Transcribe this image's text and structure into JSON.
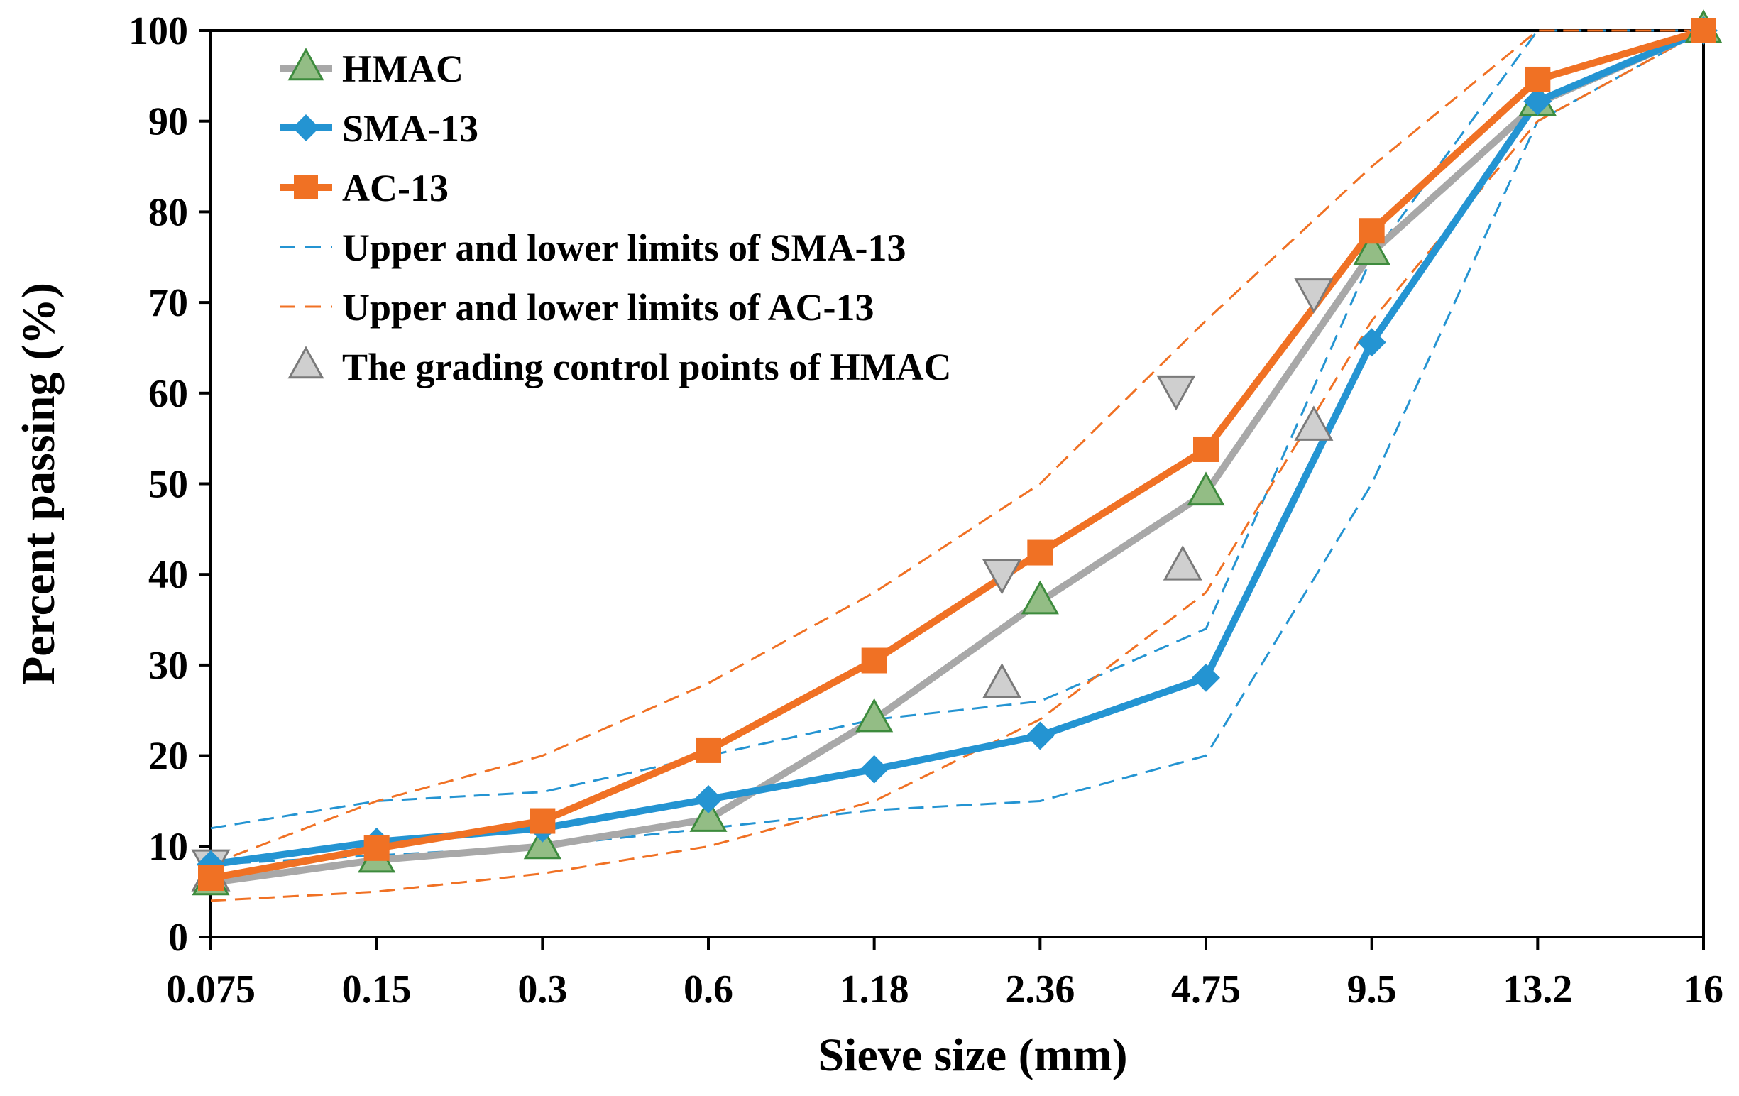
{
  "chart_data": {
    "type": "line",
    "title": "",
    "xlabel": "Sieve size (mm)",
    "ylabel": "Percent passing (%)",
    "categories": [
      "0.075",
      "0.15",
      "0.3",
      "0.6",
      "1.18",
      "2.36",
      "4.75",
      "9.5",
      "13.2",
      "16"
    ],
    "ylim": [
      0,
      100
    ],
    "yticks": [
      0,
      10,
      20,
      30,
      40,
      50,
      60,
      70,
      80,
      90,
      100
    ],
    "grid": false,
    "legend_position": "top-left",
    "series": [
      {
        "name": "HMAC",
        "style": "gray-line-green-triangle",
        "values": [
          6,
          8.5,
          10,
          13,
          24,
          37,
          49,
          75.5,
          92,
          100
        ]
      },
      {
        "name": "SMA-13",
        "style": "blue-line-diamond",
        "values": [
          8,
          10.5,
          12,
          15.2,
          18.5,
          22.2,
          28.6,
          65.6,
          92.2,
          100
        ]
      },
      {
        "name": "AC-13",
        "style": "orange-line-square",
        "values": [
          6.5,
          9.8,
          12.8,
          20.6,
          30.5,
          42.4,
          53.8,
          77.9,
          94.6,
          100
        ]
      }
    ],
    "limits": [
      {
        "name": "Upper and lower limits of SMA-13",
        "color": "#2494d2",
        "upper": [
          12,
          15,
          16,
          20,
          24,
          26,
          34,
          75,
          100,
          100
        ],
        "lower": [
          8,
          9,
          10,
          12,
          14,
          15,
          20,
          50,
          90,
          100
        ]
      },
      {
        "name": "Upper and lower limits of AC-13",
        "color": "#f07124",
        "upper": [
          8,
          15,
          20,
          28,
          38,
          50,
          68,
          85,
          100,
          100
        ],
        "lower": [
          4,
          5,
          7,
          10,
          15,
          24,
          38,
          68,
          90,
          100
        ]
      }
    ],
    "control_points": {
      "name": "The grading control points of HMAC",
      "lower": [
        {
          "x": 0.0,
          "y": 6.5
        },
        {
          "x": 4.77,
          "y": 27.8
        },
        {
          "x": 5.86,
          "y": 40.8
        },
        {
          "x": 6.65,
          "y": 56.2
        }
      ],
      "upper": [
        {
          "x": 0.0,
          "y": 8.2
        },
        {
          "x": 4.77,
          "y": 40.2
        },
        {
          "x": 5.82,
          "y": 60.5
        },
        {
          "x": 6.65,
          "y": 71.2
        }
      ]
    },
    "colors": {
      "hmac_line": "#a8a8a8",
      "hmac_marker_fill": "#93bd85",
      "hmac_marker_edge": "#3d8b3d",
      "sma": "#2494d2",
      "ac": "#f07124",
      "control_fill": "#cfcfcf",
      "control_edge": "#7a7a7a"
    }
  }
}
